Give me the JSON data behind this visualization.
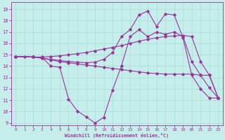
{
  "xlabel": "Windchill (Refroidissement éolien,°C)",
  "bg_color": "#c5eeea",
  "line_color": "#993399",
  "grid_color": "#a8dcd8",
  "ylim": [
    8.8,
    19.6
  ],
  "xlim": [
    -0.5,
    23.5
  ],
  "yticks": [
    9,
    10,
    11,
    12,
    13,
    14,
    15,
    16,
    17,
    18,
    19
  ],
  "xticks": [
    0,
    1,
    2,
    3,
    4,
    5,
    6,
    7,
    8,
    9,
    10,
    11,
    12,
    13,
    14,
    15,
    16,
    17,
    18,
    19,
    20,
    21,
    22,
    23
  ],
  "line1_x": [
    0,
    1,
    2,
    3,
    4,
    5,
    6,
    7,
    8,
    9,
    10,
    11,
    12,
    13,
    14,
    15,
    16,
    17,
    18,
    19,
    20,
    21,
    22,
    23
  ],
  "line1_y": [
    14.85,
    14.85,
    14.8,
    14.75,
    14.0,
    13.9,
    11.1,
    10.05,
    9.55,
    9.0,
    9.5,
    11.9,
    14.0,
    16.6,
    17.2,
    16.6,
    17.0,
    16.8,
    17.0,
    16.6,
    14.4,
    13.2,
    12.1,
    11.2
  ],
  "line2_x": [
    0,
    2,
    3,
    4,
    5,
    6,
    7,
    8,
    9,
    10,
    11,
    12,
    13,
    14,
    15,
    16,
    17,
    18,
    19,
    20,
    21,
    22,
    23
  ],
  "line2_y": [
    14.85,
    14.8,
    14.7,
    14.55,
    14.4,
    14.3,
    14.2,
    14.1,
    14.0,
    13.9,
    13.8,
    13.7,
    13.6,
    13.5,
    13.4,
    13.35,
    13.3,
    13.3,
    13.3,
    13.3,
    13.2,
    13.2,
    11.2
  ],
  "line3_x": [
    0,
    2,
    3,
    4,
    5,
    6,
    7,
    8,
    9,
    10,
    11,
    12,
    13,
    14,
    15,
    16,
    17,
    18,
    19,
    20,
    21,
    22,
    23
  ],
  "line3_y": [
    14.85,
    14.8,
    14.8,
    14.85,
    14.9,
    15.0,
    15.1,
    15.2,
    15.35,
    15.5,
    15.65,
    15.8,
    16.0,
    16.2,
    16.35,
    16.5,
    16.6,
    16.65,
    16.7,
    16.6,
    14.4,
    13.2,
    11.2
  ],
  "line4_x": [
    0,
    2,
    3,
    4,
    5,
    6,
    7,
    8,
    9,
    10,
    11,
    12,
    13,
    14,
    15,
    16,
    17,
    18,
    19,
    20,
    21,
    22,
    23
  ],
  "line4_y": [
    14.85,
    14.8,
    14.7,
    14.6,
    14.5,
    14.4,
    14.35,
    14.3,
    14.35,
    14.6,
    15.2,
    16.6,
    17.2,
    18.5,
    18.85,
    17.5,
    18.6,
    18.5,
    16.5,
    13.2,
    12.0,
    11.2,
    11.2
  ]
}
